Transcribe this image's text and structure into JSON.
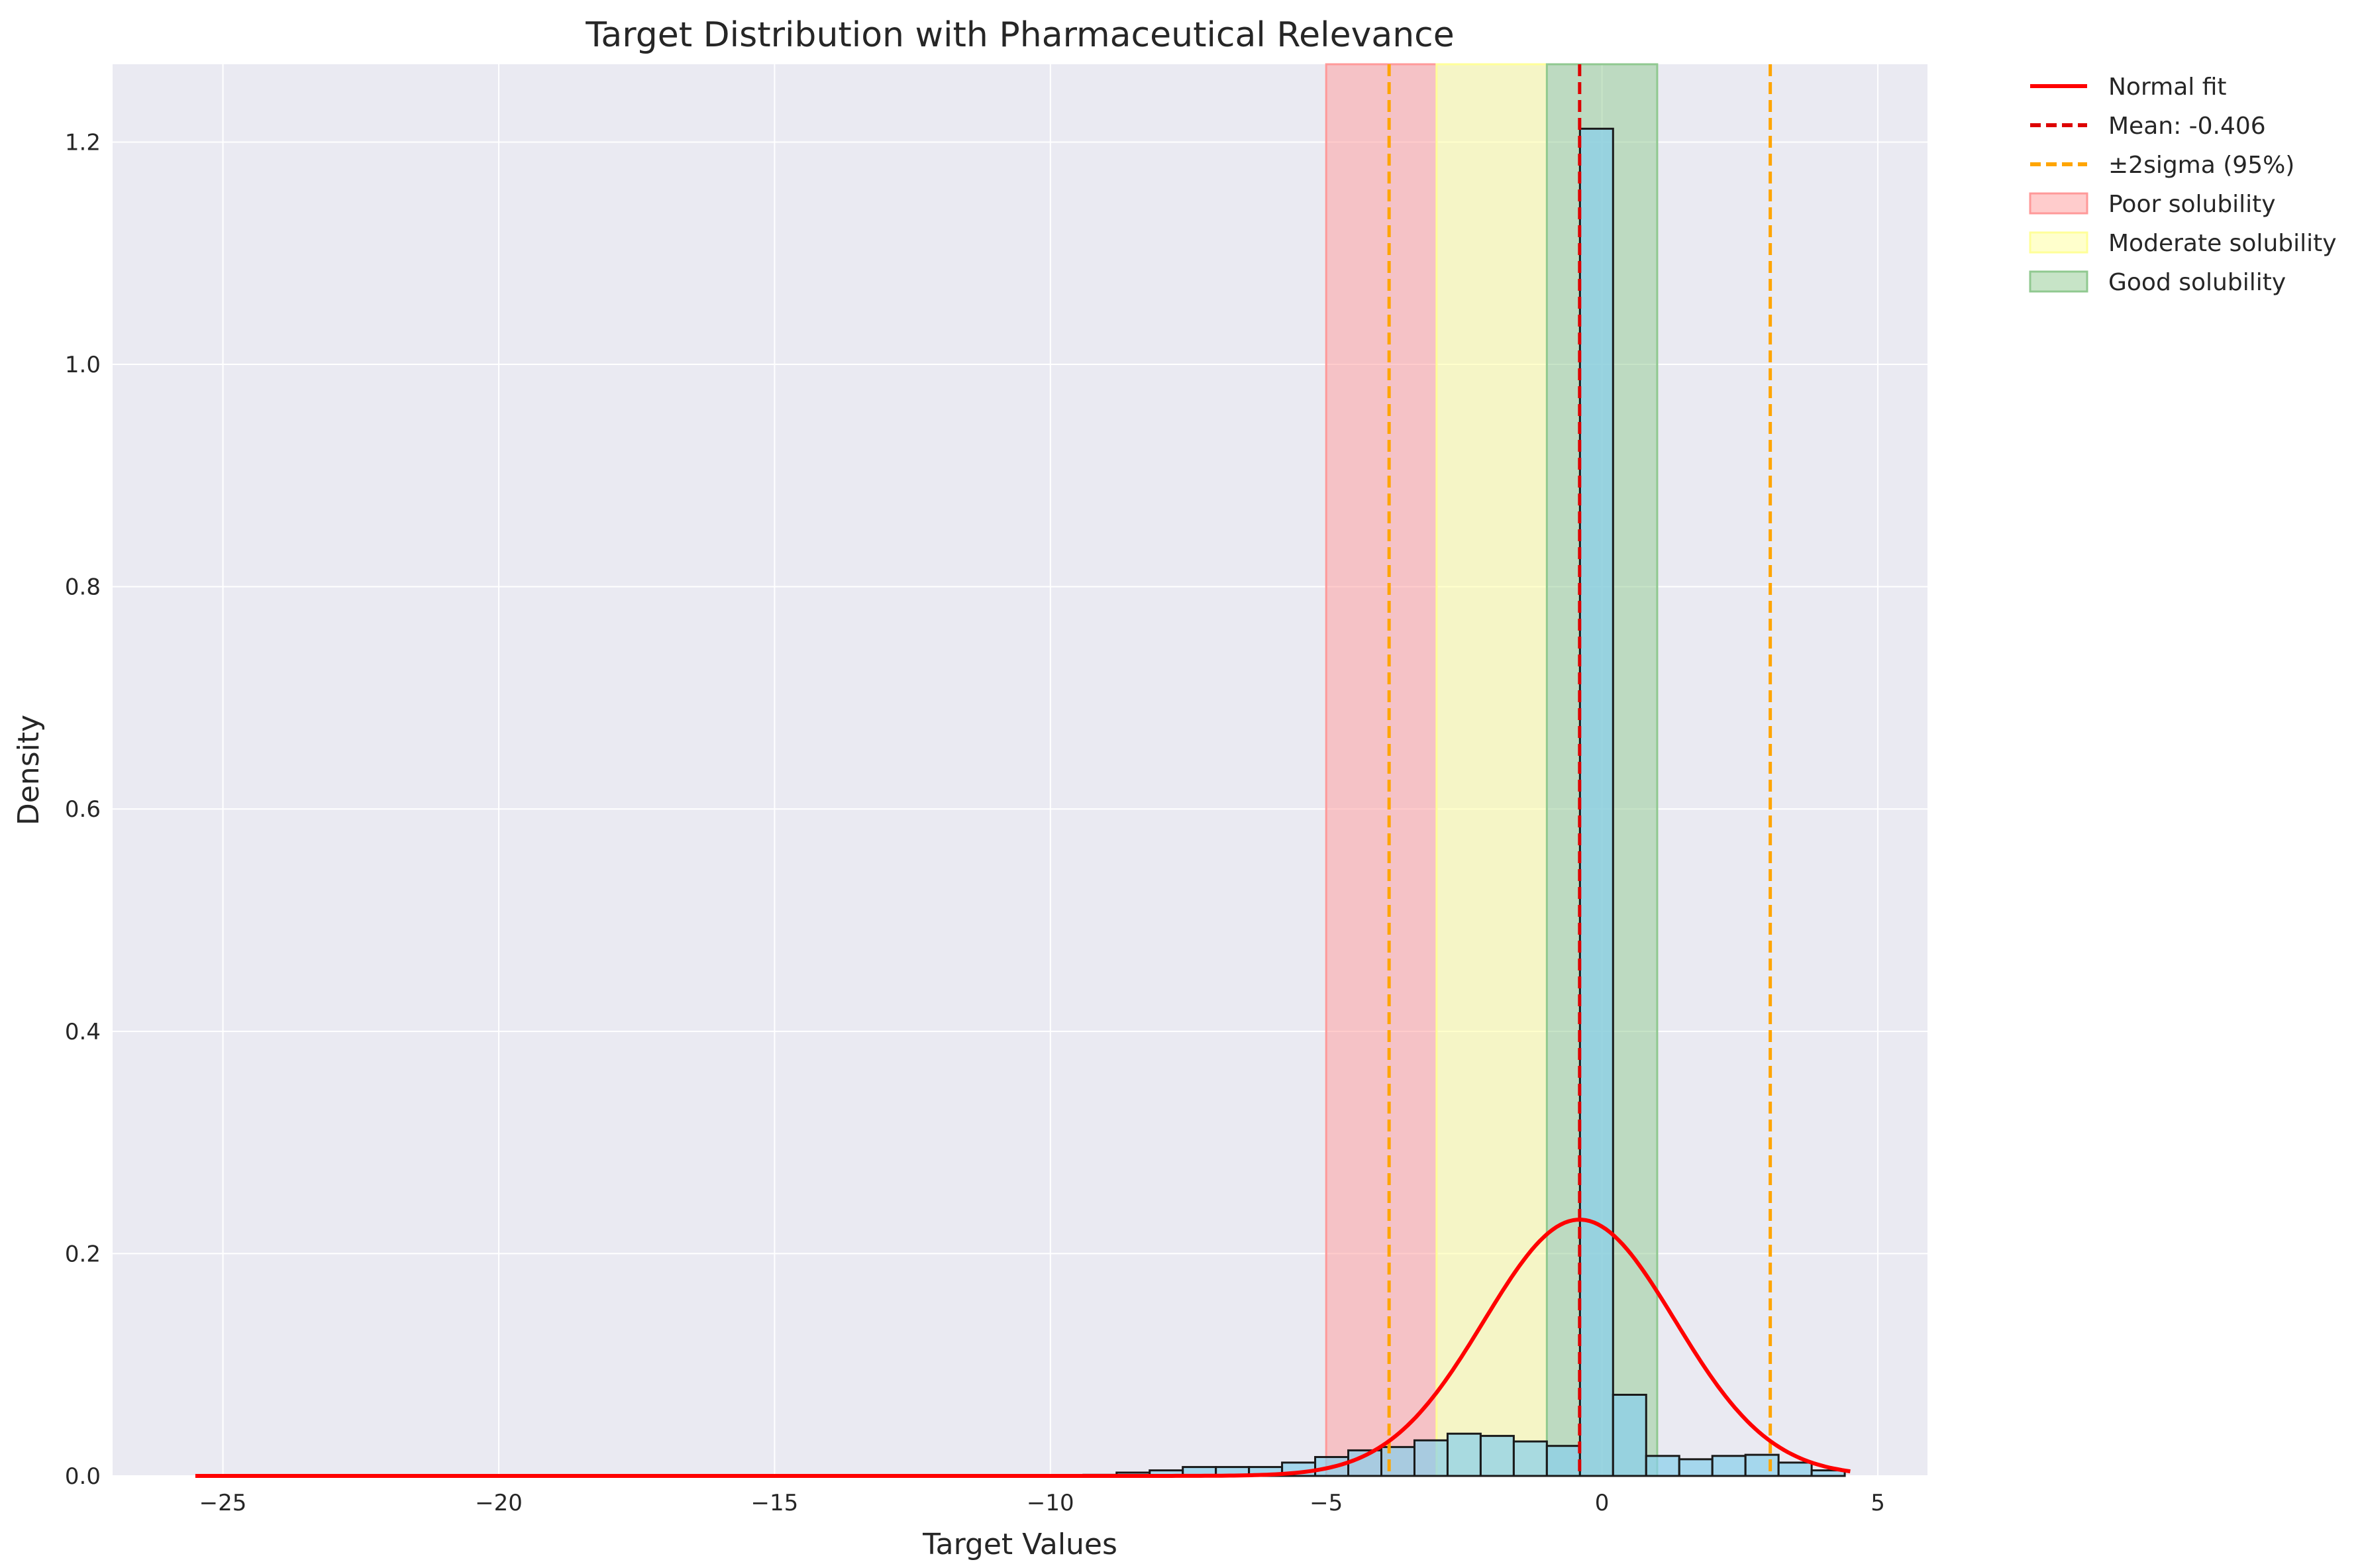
{
  "chart_data": {
    "type": "bar",
    "title": "Target Distribution with Pharmaceutical Relevance",
    "xlabel": "Target Values",
    "ylabel": "Density",
    "xlim": [
      -27,
      5.9
    ],
    "ylim": [
      0,
      1.27
    ],
    "xticks": [
      -25,
      -20,
      -15,
      -10,
      -5,
      0,
      5
    ],
    "xtick_labels": [
      "−25",
      "−20",
      "−15",
      "−10",
      "−5",
      "0",
      "5"
    ],
    "yticks": [
      0,
      0.2,
      0.4,
      0.6,
      0.8,
      1.0,
      1.2
    ],
    "ytick_labels": [
      "0.0",
      "0.2",
      "0.4",
      "0.6",
      "0.8",
      "1.0",
      "1.2"
    ],
    "grid": true,
    "legend_position": "outside-right",
    "histogram": {
      "bin_edges": [
        -10,
        -9.4,
        -8.8,
        -8.2,
        -7.6,
        -7.0,
        -6.4,
        -5.8,
        -5.2,
        -4.6,
        -4.0,
        -3.4,
        -2.8,
        -2.2,
        -1.6,
        -1.0,
        -0.4,
        0.2,
        0.8,
        1.4,
        2.0,
        2.6,
        3.2,
        3.8,
        4.4
      ],
      "densities": [
        0.0005,
        0.001,
        0.003,
        0.005,
        0.008,
        0.008,
        0.008,
        0.012,
        0.017,
        0.023,
        0.026,
        0.032,
        0.038,
        0.036,
        0.031,
        0.027,
        1.212,
        0.073,
        0.018,
        0.015,
        0.018,
        0.019,
        0.012,
        0.005
      ],
      "fill": "#87ceeb",
      "edge": "#1a1a1a"
    },
    "regions": [
      {
        "name": "Poor solubility",
        "x_range": [
          -5,
          -3
        ],
        "color": "#ff9999"
      },
      {
        "name": "Moderate solubility",
        "x_range": [
          -3,
          -1
        ],
        "color": "#ffff99"
      },
      {
        "name": "Good solubility",
        "x_range": [
          -1,
          1
        ],
        "color": "#90c990"
      }
    ],
    "normal_fit": {
      "name": "Normal fit",
      "mean": -0.406,
      "std": 1.73,
      "x_range": [
        -25.5,
        4.5
      ],
      "color": "#ff0000"
    },
    "vlines": [
      {
        "name": "Mean: -0.406",
        "x": -0.406,
        "color": "#dd0000",
        "style": "dashed"
      },
      {
        "name": "±2sigma (95%)",
        "x": -3.86,
        "color": "#ffa500",
        "style": "dashed"
      },
      {
        "name": "±2sigma (95%)",
        "x": 3.05,
        "color": "#ffa500",
        "style": "dashed"
      }
    ],
    "legend": [
      {
        "label": "Normal fit",
        "kind": "line",
        "color": "#ff0000",
        "dash": false
      },
      {
        "label": "Mean: -0.406",
        "kind": "line",
        "color": "#dd0000",
        "dash": true
      },
      {
        "label": "±2sigma (95%)",
        "kind": "line",
        "color": "#ffa500",
        "dash": true
      },
      {
        "label": "Poor solubility",
        "kind": "patch",
        "color": "#ff9999"
      },
      {
        "label": "Moderate solubility",
        "kind": "patch",
        "color": "#ffff99"
      },
      {
        "label": "Good solubility",
        "kind": "patch",
        "color": "#90c990"
      }
    ],
    "colors": {
      "plot_bg": "#eaeaf2",
      "grid": "#ffffff"
    }
  }
}
